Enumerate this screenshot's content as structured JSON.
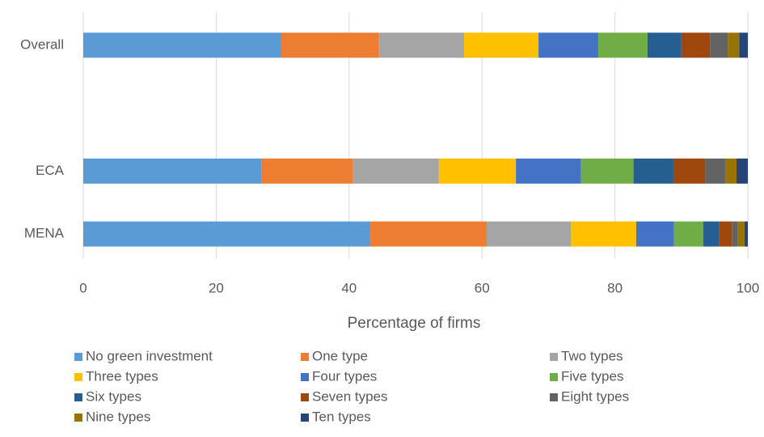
{
  "chart_data": {
    "type": "stacked-bar-horizontal",
    "categories": [
      "Overall",
      null,
      "ECA",
      "MENA"
    ],
    "x_label": "Percentage of firms",
    "xlim": [
      0,
      100
    ],
    "xticks": [
      0,
      20,
      40,
      60,
      80,
      100
    ],
    "grid": true,
    "legend": "bottom",
    "series": [
      {
        "name": "No green investment",
        "color": "#5b9bd5",
        "values": [
          29.8,
          null,
          26.8,
          43.2
        ]
      },
      {
        "name": "One type",
        "color": "#ed7d31",
        "values": [
          14.7,
          null,
          13.8,
          17.5
        ]
      },
      {
        "name": "Two types",
        "color": "#a5a5a5",
        "values": [
          12.8,
          null,
          12.9,
          12.7
        ]
      },
      {
        "name": "Three types",
        "color": "#ffc000",
        "values": [
          11.2,
          null,
          11.6,
          9.8
        ]
      },
      {
        "name": "Four types",
        "color": "#4472c4",
        "values": [
          9.0,
          null,
          9.8,
          5.7
        ]
      },
      {
        "name": "Five types",
        "color": "#70ad47",
        "values": [
          7.4,
          null,
          7.9,
          4.4
        ]
      },
      {
        "name": "Six types",
        "color": "#255e91",
        "values": [
          5.1,
          null,
          6.0,
          2.4
        ]
      },
      {
        "name": "Seven types",
        "color": "#9e480e",
        "values": [
          4.3,
          null,
          4.8,
          1.9
        ]
      },
      {
        "name": "Eight types",
        "color": "#636363",
        "values": [
          2.7,
          null,
          3.0,
          0.9
        ]
      },
      {
        "name": "Nine types",
        "color": "#997300",
        "values": [
          1.7,
          null,
          1.7,
          1.0
        ]
      },
      {
        "name": "Ten types",
        "color": "#264478",
        "values": [
          1.3,
          null,
          1.7,
          0.5
        ]
      }
    ]
  }
}
